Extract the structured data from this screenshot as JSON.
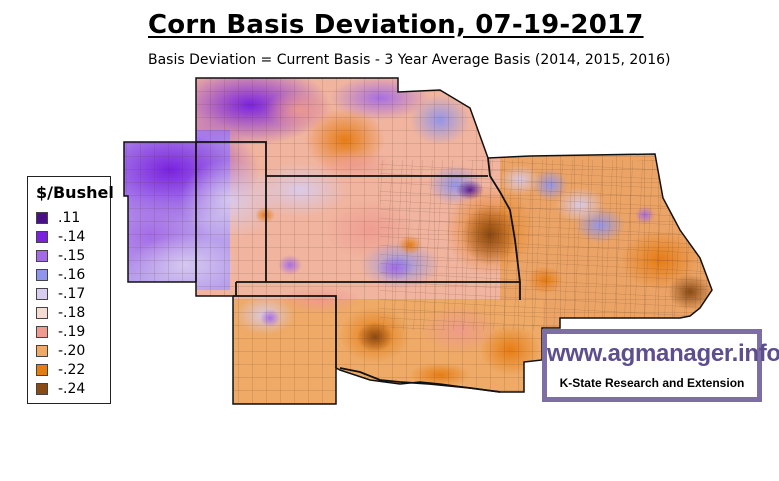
{
  "title": "Corn Basis Deviation, 07-19-2017",
  "subtitle": "Basis Deviation = Current Basis - 3 Year Average Basis (2014, 2015, 2016)",
  "legend": {
    "title": "$/Bushel",
    "items": [
      {
        "label": ".11",
        "color": "#4b0f8c"
      },
      {
        "label": "-.14",
        "color": "#7a22e0"
      },
      {
        "label": "-.15",
        "color": "#a46ae6"
      },
      {
        "label": "-.16",
        "color": "#8f94ee"
      },
      {
        "label": "-.17",
        "color": "#d8cdf1"
      },
      {
        "label": "-.18",
        "color": "#f4dcd2"
      },
      {
        "label": "-.19",
        "color": "#ef9a8e"
      },
      {
        "label": "-.20",
        "color": "#eeaa66"
      },
      {
        "label": "-.22",
        "color": "#e67c14"
      },
      {
        "label": "-.24",
        "color": "#8a4a14"
      }
    ]
  },
  "logo": {
    "url_text": "www.agmanager.info",
    "org_text": "K-State Research and Extension",
    "border_color": "#7e6ea6",
    "text_color": "#5f4e8e"
  }
}
